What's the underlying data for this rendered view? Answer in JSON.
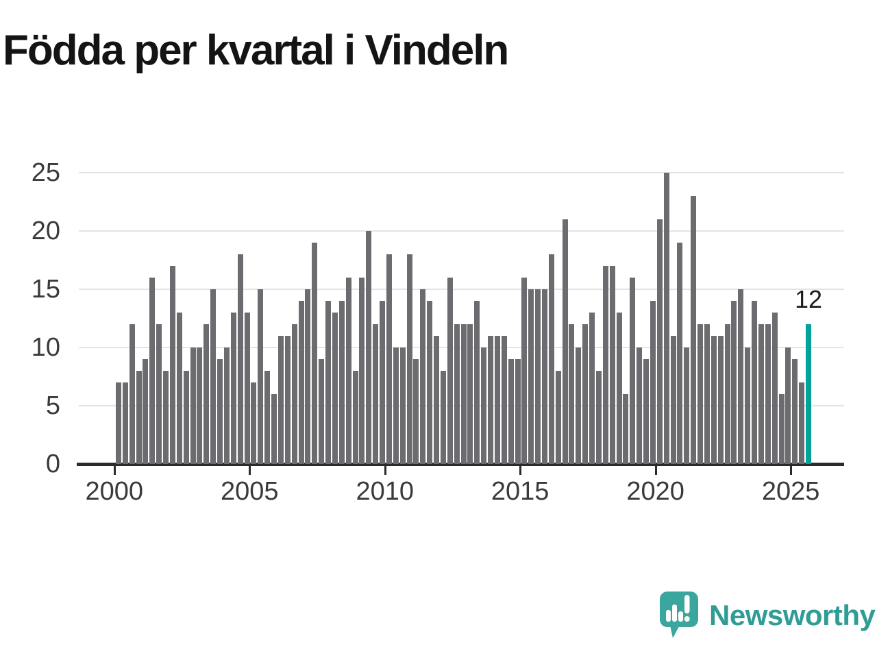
{
  "title": "Födda per kvartal i Vindeln",
  "annotation": {
    "value_label": "12"
  },
  "branding": {
    "name": "Newsworthy",
    "logo_icon": "speech-bubble-bar-chart-icon"
  },
  "colors": {
    "bar": "#6b6b70",
    "highlight": "#00a29a",
    "grid": "#e4e4e4",
    "axis": "#2b2b2b",
    "tick_label": "#3a3a3a",
    "title": "#141414",
    "brand": "#2f9c95"
  },
  "chart_data": {
    "type": "bar",
    "title": "Födda per kvartal i Vindeln",
    "xlabel": "",
    "ylabel": "",
    "start_quarter": "2000-Q1",
    "end_quarter": "2025-Q3",
    "values": [
      7,
      7,
      12,
      8,
      9,
      16,
      12,
      8,
      17,
      13,
      8,
      10,
      10,
      12,
      15,
      9,
      10,
      13,
      18,
      13,
      7,
      15,
      8,
      6,
      11,
      11,
      12,
      14,
      15,
      19,
      9,
      14,
      13,
      14,
      16,
      8,
      16,
      20,
      12,
      14,
      18,
      10,
      10,
      18,
      9,
      15,
      14,
      11,
      8,
      16,
      12,
      12,
      12,
      14,
      10,
      11,
      11,
      11,
      9,
      9,
      16,
      15,
      15,
      15,
      18,
      8,
      21,
      12,
      10,
      12,
      13,
      8,
      17,
      17,
      13,
      6,
      16,
      10,
      9,
      14,
      21,
      25,
      11,
      19,
      10,
      23,
      12,
      12,
      11,
      11,
      12,
      14,
      15,
      10,
      14,
      12,
      12,
      13,
      6,
      10,
      9,
      7,
      12
    ],
    "highlight_last_bar": true,
    "last_value_label": "12",
    "y_ticks": [
      0,
      5,
      10,
      15,
      20,
      25
    ],
    "ylim": [
      0,
      25
    ],
    "x_ticks": [
      {
        "label": "2000",
        "quarter_index": 0
      },
      {
        "label": "2005",
        "quarter_index": 20
      },
      {
        "label": "2010",
        "quarter_index": 40
      },
      {
        "label": "2015",
        "quarter_index": 60
      },
      {
        "label": "2020",
        "quarter_index": 80
      },
      {
        "label": "2025",
        "quarter_index": 100
      }
    ],
    "grid": "horizontal",
    "legend": "none"
  }
}
